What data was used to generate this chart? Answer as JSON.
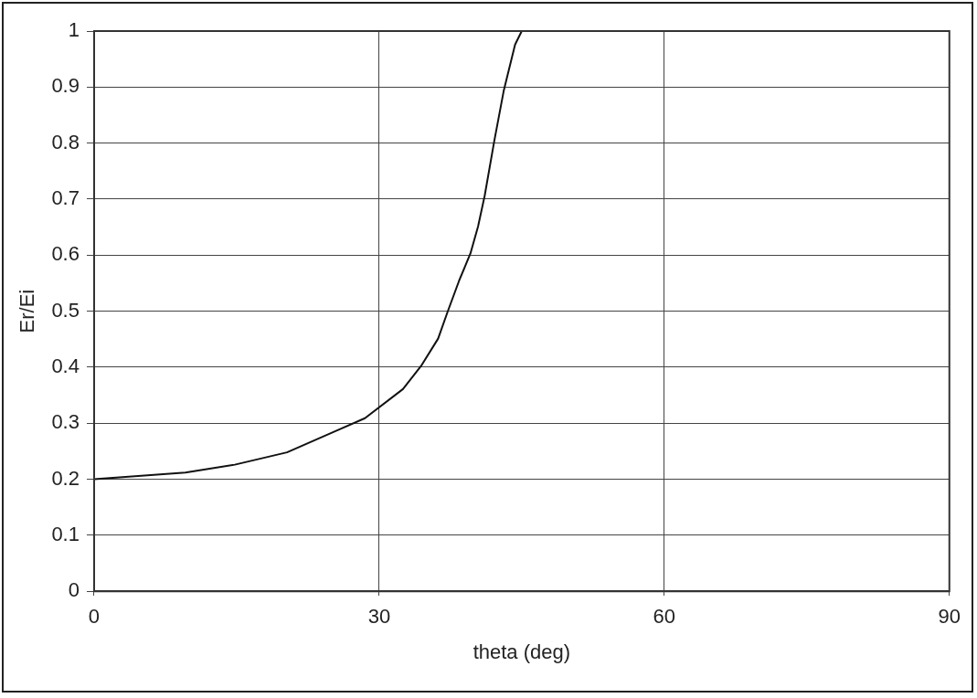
{
  "chart_data": {
    "type": "line",
    "xlabel": "theta (deg)",
    "ylabel": "Er/Ei",
    "series": [
      {
        "color": "#111111",
        "x": [
          0,
          9.6,
          14.8,
          20.3,
          25.4,
          28.5,
          32.5,
          34.4,
          36.2,
          37.2,
          38.4,
          39.6,
          40.4,
          41.1,
          42.1,
          43.1,
          44.3,
          45
        ],
        "values": [
          0.2,
          0.212,
          0.226,
          0.248,
          0.286,
          0.309,
          0.361,
          0.402,
          0.451,
          0.499,
          0.554,
          0.603,
          0.651,
          0.706,
          0.803,
          0.893,
          0.976,
          1.0
        ]
      }
    ],
    "xlim": [
      0,
      90
    ],
    "xticks": [
      0,
      30,
      60,
      90
    ],
    "ylim": [
      0,
      1
    ],
    "yticks": [
      0,
      0.1,
      0.2,
      0.3,
      0.4,
      0.5,
      0.6,
      0.7,
      0.8,
      0.9,
      1
    ],
    "grid": true,
    "legend": false,
    "marker": "none",
    "line_style": "solid"
  }
}
